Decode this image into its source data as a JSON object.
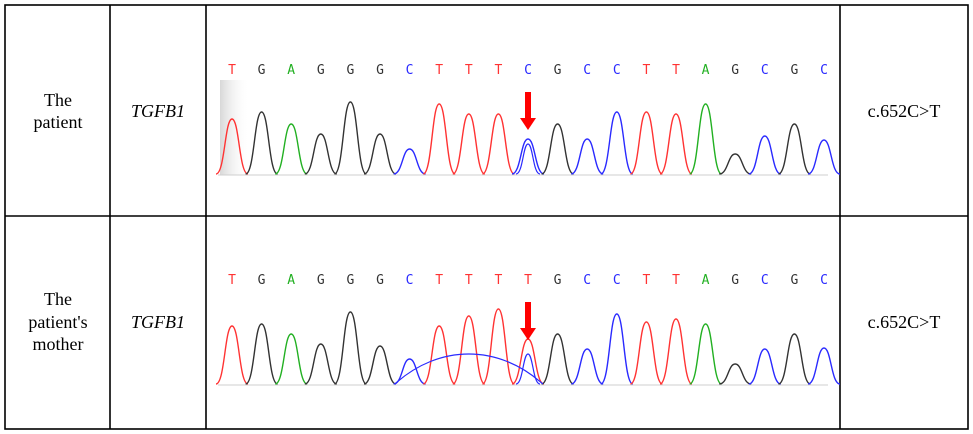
{
  "colors": {
    "A": "#22b022",
    "C": "#2a2aff",
    "G": "#333333",
    "T": "#ff3333",
    "arrow": "#ff0000",
    "border": "#000000"
  },
  "rows": [
    {
      "sample": [
        "The",
        "patient"
      ],
      "gene": "TGFB1",
      "variant": "c.652C>T",
      "sequence": [
        "T",
        "G",
        "A",
        "G",
        "G",
        "G",
        "C",
        "T",
        "T",
        "T",
        "C",
        "G",
        "C",
        "C",
        "T",
        "T",
        "A",
        "G",
        "C",
        "G",
        "C"
      ],
      "arrow_at_index": 10
    },
    {
      "sample": [
        "The",
        "patient's",
        "mother"
      ],
      "gene": "TGFB1",
      "variant": "c.652C>T",
      "sequence": [
        "T",
        "G",
        "A",
        "G",
        "G",
        "G",
        "C",
        "T",
        "T",
        "T",
        "T",
        "G",
        "C",
        "C",
        "T",
        "T",
        "A",
        "G",
        "C",
        "G",
        "C"
      ],
      "arrow_at_index": 10
    }
  ]
}
